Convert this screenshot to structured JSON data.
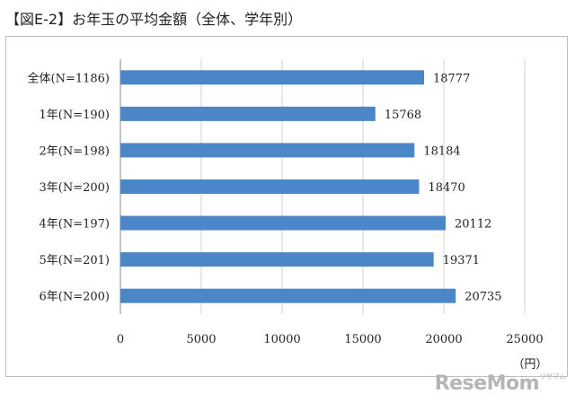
{
  "title": "【図E-2】お年玉の平均金額（全体、学年別）",
  "watermark": "ReseMom",
  "watermark_sub": "リセマム",
  "chart_data": {
    "type": "bar",
    "orientation": "horizontal",
    "title": "【図E-2】お年玉の平均金額（全体、学年別）",
    "categories": [
      "全体(N=1186)",
      "1年(N=190)",
      "2年(N=198)",
      "3年(N=200)",
      "4年(N=197)",
      "5年(N=201)",
      "6年(N=200)"
    ],
    "values": [
      18777,
      15768,
      18184,
      18470,
      20112,
      19371,
      20735
    ],
    "xlabel": "（円）",
    "ylabel": "",
    "xlim": [
      0,
      25000
    ],
    "xticks": [
      0,
      5000,
      10000,
      15000,
      20000,
      25000
    ],
    "grid": true,
    "bar_color": "#4a86c8"
  }
}
